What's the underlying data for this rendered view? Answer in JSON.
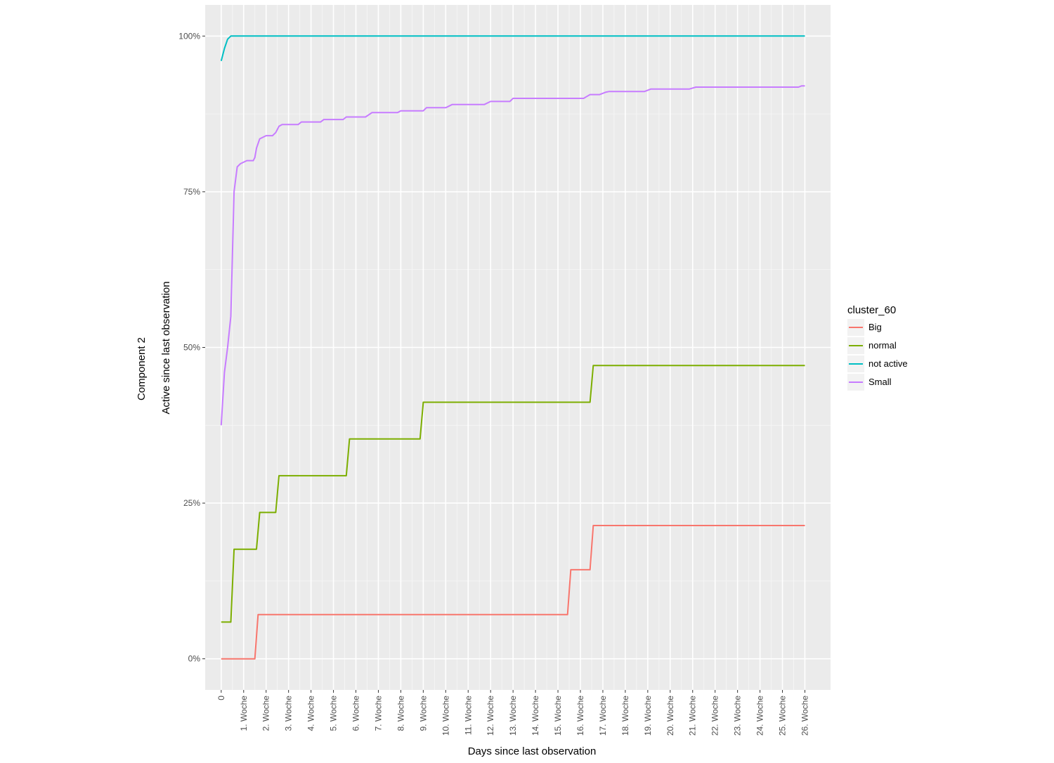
{
  "chart_data": {
    "type": "line",
    "title": "",
    "outer_label": "Component 2",
    "xlabel": "Days since last observation",
    "ylabel": "Active since last observation",
    "x_unit": "days",
    "xlim": [
      -5,
      190
    ],
    "ylim": [
      -0.05,
      1.05
    ],
    "yticks": [
      0,
      0.25,
      0.5,
      0.75,
      1.0
    ],
    "ytick_labels": [
      "0%",
      "25%",
      "50%",
      "75%",
      "100%"
    ],
    "xticks": [
      0,
      7,
      14,
      21,
      28,
      35,
      42,
      49,
      56,
      63,
      70,
      77,
      84,
      91,
      98,
      105,
      112,
      119,
      126,
      133,
      140,
      147,
      154,
      161,
      168,
      175,
      182
    ],
    "xtick_labels": [
      "0",
      "1. Woche",
      "2. Woche",
      "3. Woche",
      "4. Woche",
      "5. Woche",
      "6. Woche",
      "7. Woche",
      "8. Woche",
      "9. Woche",
      "10. Woche",
      "11. Woche",
      "12. Woche",
      "13. Woche",
      "14. Woche",
      "15. Woche",
      "16. Woche",
      "17. Woche",
      "18. Woche",
      "19. Woche",
      "20. Woche",
      "21. Woche",
      "22. Woche",
      "23. Woche",
      "24. Woche",
      "25. Woche",
      "26. Woche"
    ],
    "grid": true,
    "legend": {
      "title": "cluster_60",
      "position": "right",
      "entries": [
        "Big",
        "normal",
        "not active",
        "Small"
      ]
    },
    "series": [
      {
        "name": "Big",
        "color": "#F8766D",
        "x": [
          0,
          10.5,
          11.5,
          108,
          109,
          115,
          116,
          182
        ],
        "y": [
          0,
          0,
          0.071,
          0.071,
          0.143,
          0.143,
          0.214,
          0.214
        ]
      },
      {
        "name": "normal",
        "color": "#7CAE00",
        "x": [
          0,
          3,
          4,
          11,
          12,
          17,
          18,
          39,
          40,
          62,
          63,
          115,
          116,
          182
        ],
        "y": [
          0.059,
          0.059,
          0.176,
          0.176,
          0.235,
          0.235,
          0.294,
          0.294,
          0.353,
          0.353,
          0.412,
          0.412,
          0.471,
          0.471
        ]
      },
      {
        "name": "not active",
        "color": "#00BFC4",
        "x": [
          0,
          1,
          2,
          3,
          182
        ],
        "y": [
          0.96,
          0.98,
          0.995,
          1.0,
          1.0
        ]
      },
      {
        "name": "Small",
        "color": "#C77CFF",
        "x": [
          0,
          1,
          2,
          3,
          4,
          5,
          6,
          8,
          10,
          10.5,
          11,
          12,
          14,
          16,
          17,
          18,
          19,
          24,
          25,
          31,
          32,
          38,
          39,
          45,
          47,
          55,
          56,
          63,
          64,
          70,
          72,
          82,
          84,
          90,
          91,
          113,
          114,
          115,
          118,
          120,
          121,
          132,
          134,
          146,
          148,
          180,
          181,
          182
        ],
        "y": [
          0.375,
          0.46,
          0.5,
          0.55,
          0.75,
          0.79,
          0.795,
          0.8,
          0.8,
          0.805,
          0.82,
          0.835,
          0.84,
          0.84,
          0.845,
          0.855,
          0.858,
          0.858,
          0.862,
          0.862,
          0.866,
          0.866,
          0.87,
          0.87,
          0.877,
          0.877,
          0.88,
          0.88,
          0.885,
          0.885,
          0.89,
          0.89,
          0.895,
          0.895,
          0.9,
          0.9,
          0.903,
          0.906,
          0.906,
          0.91,
          0.911,
          0.911,
          0.915,
          0.915,
          0.918,
          0.918,
          0.92,
          0.92
        ]
      }
    ]
  }
}
